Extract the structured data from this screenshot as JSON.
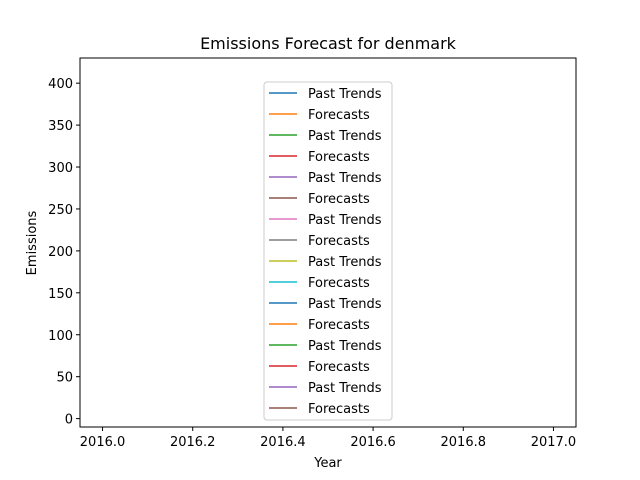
{
  "chart_data": {
    "type": "line",
    "title": "Emissions Forecast for denmark",
    "xlabel": "Year",
    "ylabel": "Emissions",
    "xlim": [
      2015.95,
      2017.05
    ],
    "ylim": [
      -10,
      430
    ],
    "x_ticks": [
      2016.0,
      2016.2,
      2016.4,
      2016.6,
      2016.8,
      2017.0
    ],
    "x_tick_labels": [
      "2016.0",
      "2016.2",
      "2016.4",
      "2016.6",
      "2016.8",
      "2017.0"
    ],
    "y_ticks": [
      0,
      50,
      100,
      150,
      200,
      250,
      300,
      350,
      400
    ],
    "y_tick_labels": [
      "0",
      "50",
      "100",
      "150",
      "200",
      "250",
      "300",
      "350",
      "400"
    ],
    "grid": false,
    "legend_position": "top-center",
    "series": [
      {
        "name": "Past Trends",
        "color": "#1f77b4",
        "x": [],
        "values": []
      },
      {
        "name": "Forecasts",
        "color": "#ff7f0e",
        "x": [],
        "values": []
      },
      {
        "name": "Past Trends",
        "color": "#2ca02c",
        "x": [],
        "values": []
      },
      {
        "name": "Forecasts",
        "color": "#d62728",
        "x": [],
        "values": []
      },
      {
        "name": "Past Trends",
        "color": "#9467bd",
        "x": [],
        "values": []
      },
      {
        "name": "Forecasts",
        "color": "#8c564b",
        "x": [],
        "values": []
      },
      {
        "name": "Past Trends",
        "color": "#e377c2",
        "x": [],
        "values": []
      },
      {
        "name": "Forecasts",
        "color": "#7f7f7f",
        "x": [],
        "values": []
      },
      {
        "name": "Past Trends",
        "color": "#bcbd22",
        "x": [],
        "values": []
      },
      {
        "name": "Forecasts",
        "color": "#17becf",
        "x": [],
        "values": []
      },
      {
        "name": "Past Trends",
        "color": "#1f77b4",
        "x": [],
        "values": []
      },
      {
        "name": "Forecasts",
        "color": "#ff7f0e",
        "x": [],
        "values": []
      },
      {
        "name": "Past Trends",
        "color": "#2ca02c",
        "x": [],
        "values": []
      },
      {
        "name": "Forecasts",
        "color": "#d62728",
        "x": [],
        "values": []
      },
      {
        "name": "Past Trends",
        "color": "#9467bd",
        "x": [],
        "values": []
      },
      {
        "name": "Forecasts",
        "color": "#8c564b",
        "x": [],
        "values": []
      }
    ]
  }
}
